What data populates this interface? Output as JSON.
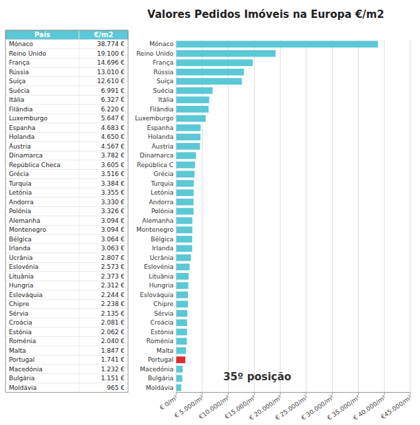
{
  "chart_data": [
    {
      "type": "bar",
      "orientation": "horizontal",
      "title": "Valores Pedidos Imóveis na Europa €/m2",
      "categories": [
        "Mónaco",
        "Reino Unido",
        "França",
        "Rússia",
        "Suíça",
        "Suécia",
        "Itália",
        "Filândia",
        "Luxemburgo",
        "Espanha",
        "Holanda",
        "Áustria",
        "Dinamarca",
        "República C",
        "Grécia",
        "Turquia",
        "Letónia",
        "Andorra",
        "Polónia",
        "Alemanha",
        "Montenegro",
        "Bélgica",
        "Irlanda",
        "Ucrânia",
        "Eslovénia",
        "Lituânia",
        "Hungria",
        "Eslováquia",
        "Chipre",
        "Sérvia",
        "Croácia",
        "Estónia",
        "Roménia",
        "Malta",
        "Portugal",
        "Macedónia",
        "Bulgária",
        "Moldávia"
      ],
      "values": [
        38774,
        19100,
        14696,
        13010,
        12610,
        6991,
        6327,
        6220,
        5647,
        4683,
        4650,
        4567,
        3782,
        3605,
        3516,
        3384,
        3355,
        3330,
        3326,
        3094,
        3094,
        3064,
        3063,
        2807,
        2573,
        2373,
        2312,
        2244,
        2238,
        2135,
        2081,
        2062,
        2040,
        1847,
        1741,
        1232,
        1151,
        965
      ],
      "colors": [
        "#5bc8d5",
        "#5bc8d5",
        "#5bc8d5",
        "#5bc8d5",
        "#5bc8d5",
        "#5bc8d5",
        "#5bc8d5",
        "#5bc8d5",
        "#5bc8d5",
        "#5bc8d5",
        "#5bc8d5",
        "#5bc8d5",
        "#5bc8d5",
        "#5bc8d5",
        "#5bc8d5",
        "#5bc8d5",
        "#5bc8d5",
        "#5bc8d5",
        "#5bc8d5",
        "#5bc8d5",
        "#5bc8d5",
        "#5bc8d5",
        "#5bc8d5",
        "#5bc8d5",
        "#5bc8d5",
        "#5bc8d5",
        "#5bc8d5",
        "#5bc8d5",
        "#5bc8d5",
        "#5bc8d5",
        "#5bc8d5",
        "#5bc8d5",
        "#5bc8d5",
        "#5bc8d5",
        "#d9312a",
        "#5bc8d5",
        "#5bc8d5",
        "#5bc8d5"
      ],
      "xlim": [
        0,
        45000
      ],
      "xticks": [
        {
          "value": 0,
          "label": "€ 0/m²"
        },
        {
          "value": 5000,
          "label": "€ 5.000/m²"
        },
        {
          "value": 10000,
          "label": "€10.000/m²"
        },
        {
          "value": 15000,
          "label": "€15.000/m²"
        },
        {
          "value": 20000,
          "label": "€ 20.000/m²"
        },
        {
          "value": 25000,
          "label": "€ 25.000/m²"
        },
        {
          "value": 30000,
          "label": "€ 30.000/m²"
        },
        {
          "value": 35000,
          "label": "€ 35.000/m²"
        },
        {
          "value": 40000,
          "label": "€ 40.000/m²"
        },
        {
          "value": 45000,
          "label": "€45.000/m²"
        }
      ],
      "grid": true,
      "annotation": "35º posição"
    },
    {
      "type": "table",
      "columns": [
        "País",
        "€/m2"
      ],
      "color": "#5bc8d5",
      "categories": [
        "Mónaco",
        "Reino Unido",
        "França",
        "Rússia",
        "Suíça",
        "Suécia",
        "Itália",
        "Filândia",
        "Luxemburgo",
        "Espanha",
        "Holanda",
        "Áustria",
        "Dinamarca",
        "República Checa",
        "Grécia",
        "Turquia",
        "Letónia",
        "Andorra",
        "Polónia",
        "Alemanha",
        "Montenegro",
        "Bélgica",
        "Irlanda",
        "Ucrânia",
        "Eslovénia",
        "Lituânia",
        "Hungria",
        "Eslováquia",
        "Chipre",
        "Sérvia",
        "Croácia",
        "Estónia",
        "Roménia",
        "Malta",
        "Portugal",
        "Macedónia",
        "Bulgária",
        "Moldávia"
      ],
      "values": [
        38774,
        19100,
        14696,
        13010,
        12610,
        6991,
        6327,
        6220,
        5647,
        4683,
        4650,
        4567,
        3782,
        3605,
        3516,
        3384,
        3355,
        3330,
        3326,
        3094,
        3094,
        3064,
        3063,
        2807,
        2573,
        2373,
        2312,
        2244,
        2238,
        2135,
        2081,
        2062,
        2040,
        1847,
        1741,
        1232,
        1151,
        965
      ],
      "value_labels": [
        "38.774 €",
        "19.100 €",
        "14.696 €",
        "13.010 €",
        "12.610 €",
        "6.991 €",
        "6.327 €",
        "6.220 €",
        "5.647 €",
        "4.683 €",
        "4.650 €",
        "4.567 €",
        "3.782 €",
        "3.605 €",
        "3.516 €",
        "3.384 €",
        "3.355 €",
        "3.330 €",
        "3.326 €",
        "3.094 €",
        "3.094 €",
        "3.064 €",
        "3.063 €",
        "2.807 €",
        "2.573 €",
        "2.373 €",
        "2.312 €",
        "2.244 €",
        "2.238 €",
        "2.135 €",
        "2.081 €",
        "2.062 €",
        "2.040 €",
        "1.847 €",
        "1.741 €",
        "1.232 €",
        "1.151 €",
        "965 €"
      ]
    }
  ]
}
